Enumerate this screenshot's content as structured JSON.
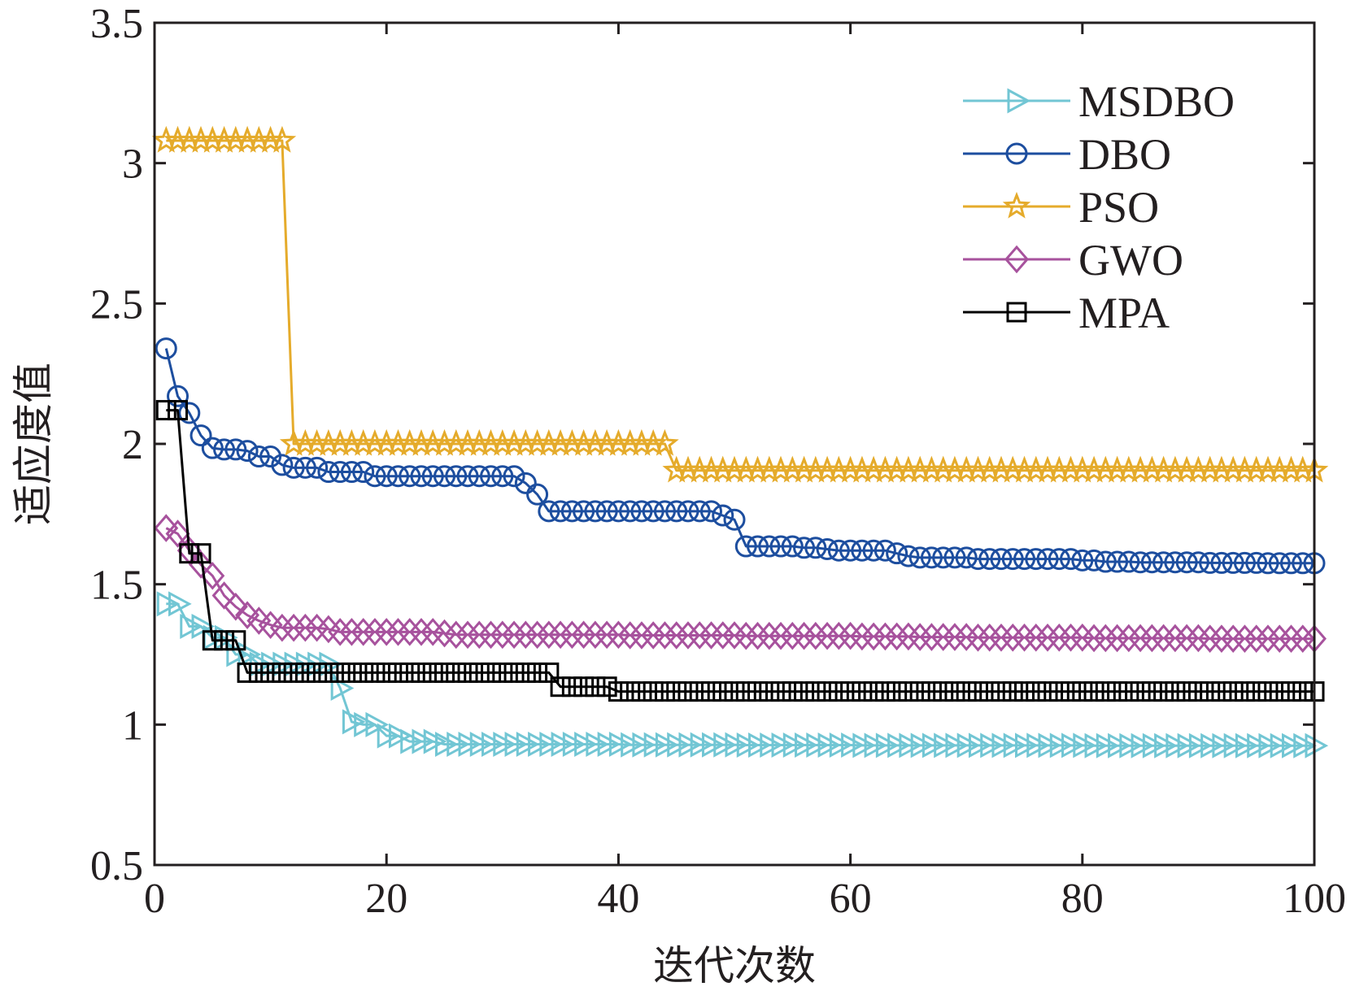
{
  "chart_data": {
    "type": "line",
    "title": "",
    "xlabel": "迭代次数",
    "ylabel": "适应度值",
    "xlim": [
      0,
      100
    ],
    "ylim": [
      0.5,
      3.5
    ],
    "xticks": [
      0,
      20,
      40,
      60,
      80,
      100
    ],
    "xtick_labels": [
      "0",
      "20",
      "40",
      "60",
      "80",
      "100"
    ],
    "yticks": [
      0.5,
      1,
      1.5,
      2,
      2.5,
      3,
      3.5
    ],
    "ytick_labels": [
      "0.5",
      "1",
      "1.5",
      "2",
      "2.5",
      "3",
      "3.5"
    ],
    "grid": false,
    "legend_position": "top-right",
    "x": [
      1,
      2,
      3,
      4,
      5,
      6,
      7,
      8,
      9,
      10,
      11,
      12,
      13,
      14,
      15,
      16,
      17,
      18,
      19,
      20,
      21,
      22,
      23,
      24,
      25,
      26,
      27,
      28,
      29,
      30,
      31,
      32,
      33,
      34,
      35,
      36,
      37,
      38,
      39,
      40,
      41,
      42,
      43,
      44,
      45,
      46,
      47,
      48,
      49,
      50,
      51,
      52,
      53,
      54,
      55,
      56,
      57,
      58,
      59,
      60,
      61,
      62,
      63,
      64,
      65,
      66,
      67,
      68,
      69,
      70,
      71,
      72,
      73,
      74,
      75,
      76,
      77,
      78,
      79,
      80,
      81,
      82,
      83,
      84,
      85,
      86,
      87,
      88,
      89,
      90,
      91,
      92,
      93,
      94,
      95,
      96,
      97,
      98,
      99,
      100
    ],
    "series": [
      {
        "name": "MSDBO",
        "color": "#72c6d4",
        "marker": "triangle-right",
        "values": [
          1.43,
          1.43,
          1.35,
          1.35,
          1.31,
          1.31,
          1.25,
          1.25,
          1.215,
          1.215,
          1.215,
          1.215,
          1.215,
          1.215,
          1.215,
          1.13,
          1.01,
          1.0,
          1.0,
          0.96,
          0.96,
          0.94,
          0.94,
          0.94,
          0.93,
          0.93,
          0.93,
          0.93,
          0.93,
          0.93,
          0.93,
          0.93,
          0.93,
          0.93,
          0.93,
          0.93,
          0.93,
          0.93,
          0.93,
          0.93,
          0.928,
          0.928,
          0.928,
          0.928,
          0.928,
          0.928,
          0.928,
          0.928,
          0.928,
          0.928,
          0.927,
          0.927,
          0.927,
          0.927,
          0.927,
          0.927,
          0.927,
          0.927,
          0.927,
          0.927,
          0.926,
          0.926,
          0.926,
          0.926,
          0.926,
          0.926,
          0.926,
          0.926,
          0.926,
          0.926,
          0.926,
          0.926,
          0.926,
          0.926,
          0.926,
          0.926,
          0.926,
          0.926,
          0.926,
          0.926,
          0.925,
          0.925,
          0.925,
          0.925,
          0.925,
          0.925,
          0.925,
          0.925,
          0.925,
          0.925,
          0.925,
          0.925,
          0.925,
          0.925,
          0.925,
          0.925,
          0.925,
          0.925,
          0.925,
          0.925
        ]
      },
      {
        "name": "DBO",
        "color": "#1d4e9f",
        "marker": "circle",
        "values": [
          2.34,
          2.17,
          2.11,
          2.03,
          1.985,
          1.98,
          1.98,
          1.975,
          1.955,
          1.955,
          1.925,
          1.915,
          1.915,
          1.915,
          1.9,
          1.9,
          1.9,
          1.9,
          1.885,
          1.885,
          1.885,
          1.885,
          1.885,
          1.885,
          1.885,
          1.885,
          1.885,
          1.885,
          1.885,
          1.885,
          1.885,
          1.86,
          1.82,
          1.76,
          1.76,
          1.76,
          1.76,
          1.76,
          1.76,
          1.76,
          1.76,
          1.76,
          1.76,
          1.76,
          1.76,
          1.76,
          1.76,
          1.76,
          1.745,
          1.73,
          1.635,
          1.635,
          1.635,
          1.635,
          1.635,
          1.63,
          1.63,
          1.625,
          1.62,
          1.62,
          1.62,
          1.62,
          1.62,
          1.61,
          1.6,
          1.595,
          1.595,
          1.595,
          1.595,
          1.595,
          1.59,
          1.59,
          1.59,
          1.59,
          1.59,
          1.59,
          1.59,
          1.59,
          1.59,
          1.585,
          1.585,
          1.58,
          1.58,
          1.58,
          1.578,
          1.578,
          1.578,
          1.578,
          1.578,
          1.578,
          1.576,
          1.576,
          1.576,
          1.576,
          1.576,
          1.575,
          1.575,
          1.575,
          1.575,
          1.575
        ]
      },
      {
        "name": "PSO",
        "color": "#e5ab2b",
        "marker": "star",
        "values": [
          3.08,
          3.08,
          3.08,
          3.08,
          3.08,
          3.08,
          3.08,
          3.08,
          3.08,
          3.08,
          3.08,
          2.0,
          2.0,
          2.0,
          2.0,
          2.0,
          2.0,
          2.0,
          2.0,
          2.0,
          2.0,
          2.0,
          2.0,
          2.0,
          2.0,
          2.0,
          2.0,
          2.0,
          2.0,
          2.0,
          2.0,
          2.0,
          2.0,
          2.0,
          2.0,
          2.0,
          2.0,
          2.0,
          2.0,
          2.0,
          2.0,
          2.0,
          2.0,
          2.0,
          1.905,
          1.905,
          1.905,
          1.905,
          1.905,
          1.905,
          1.905,
          1.905,
          1.905,
          1.905,
          1.905,
          1.905,
          1.905,
          1.905,
          1.905,
          1.905,
          1.905,
          1.905,
          1.905,
          1.905,
          1.905,
          1.905,
          1.905,
          1.905,
          1.905,
          1.905,
          1.905,
          1.905,
          1.905,
          1.905,
          1.905,
          1.905,
          1.905,
          1.905,
          1.905,
          1.905,
          1.905,
          1.905,
          1.905,
          1.905,
          1.905,
          1.905,
          1.905,
          1.905,
          1.905,
          1.905,
          1.905,
          1.905,
          1.905,
          1.905,
          1.905,
          1.905,
          1.905,
          1.905,
          1.905,
          1.905
        ]
      },
      {
        "name": "GWO",
        "color": "#a7529d",
        "marker": "diamond",
        "values": [
          1.7,
          1.68,
          1.62,
          1.57,
          1.53,
          1.46,
          1.42,
          1.39,
          1.37,
          1.355,
          1.345,
          1.345,
          1.345,
          1.345,
          1.34,
          1.33,
          1.33,
          1.33,
          1.33,
          1.33,
          1.33,
          1.33,
          1.33,
          1.33,
          1.325,
          1.32,
          1.32,
          1.32,
          1.32,
          1.32,
          1.32,
          1.32,
          1.32,
          1.32,
          1.32,
          1.32,
          1.32,
          1.32,
          1.32,
          1.32,
          1.318,
          1.318,
          1.318,
          1.318,
          1.318,
          1.318,
          1.318,
          1.318,
          1.318,
          1.318,
          1.316,
          1.316,
          1.316,
          1.316,
          1.316,
          1.316,
          1.316,
          1.316,
          1.316,
          1.316,
          1.314,
          1.314,
          1.314,
          1.314,
          1.314,
          1.312,
          1.312,
          1.312,
          1.312,
          1.312,
          1.31,
          1.31,
          1.31,
          1.31,
          1.31,
          1.31,
          1.31,
          1.31,
          1.31,
          1.31,
          1.308,
          1.308,
          1.308,
          1.308,
          1.308,
          1.308,
          1.308,
          1.308,
          1.308,
          1.308,
          1.306,
          1.306,
          1.306,
          1.306,
          1.306,
          1.306,
          1.306,
          1.306,
          1.306,
          1.306
        ]
      },
      {
        "name": "MPA",
        "color": "#000000",
        "marker": "square",
        "values": [
          2.12,
          2.12,
          1.61,
          1.61,
          1.3,
          1.3,
          1.3,
          1.185,
          1.185,
          1.185,
          1.185,
          1.185,
          1.185,
          1.185,
          1.185,
          1.185,
          1.185,
          1.185,
          1.185,
          1.185,
          1.185,
          1.185,
          1.185,
          1.185,
          1.185,
          1.185,
          1.185,
          1.185,
          1.185,
          1.185,
          1.185,
          1.185,
          1.185,
          1.185,
          1.135,
          1.135,
          1.135,
          1.135,
          1.135,
          1.118,
          1.118,
          1.118,
          1.118,
          1.118,
          1.118,
          1.118,
          1.118,
          1.118,
          1.118,
          1.118,
          1.118,
          1.118,
          1.118,
          1.118,
          1.118,
          1.118,
          1.118,
          1.118,
          1.118,
          1.118,
          1.118,
          1.118,
          1.118,
          1.118,
          1.118,
          1.118,
          1.118,
          1.118,
          1.118,
          1.118,
          1.118,
          1.118,
          1.118,
          1.118,
          1.118,
          1.118,
          1.118,
          1.118,
          1.118,
          1.118,
          1.118,
          1.118,
          1.118,
          1.118,
          1.118,
          1.118,
          1.118,
          1.118,
          1.118,
          1.118,
          1.118,
          1.118,
          1.118,
          1.118,
          1.118,
          1.118,
          1.118,
          1.118,
          1.118,
          1.118
        ]
      }
    ]
  }
}
